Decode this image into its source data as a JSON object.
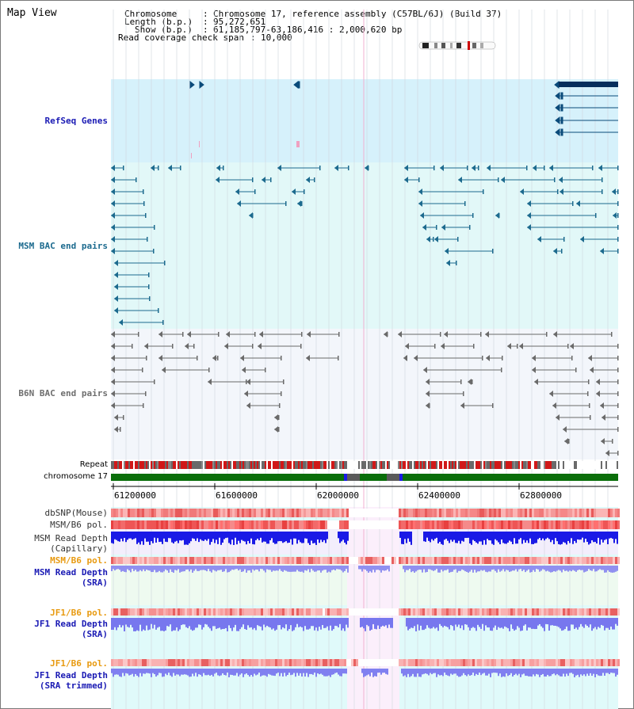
{
  "window": {
    "title": "Map View"
  },
  "header": {
    "chromosome_label": "Chromosome",
    "chromosome_value": "Chromosome 17, reference assembly (C57BL/6J) (Build 37)",
    "length_label": "Length (b.p.)",
    "length_value": "95,272,651",
    "show_label": "Show (b.p.)",
    "show_value": "61,185,797-63,186,416 : 2,000,620 bp",
    "coverage_label": "Read coverage check span",
    "coverage_value": "10,000"
  },
  "tracks": {
    "refseq": "RefSeq Genes",
    "msm_bac": "MSM BAC end pairs",
    "b6n_bac": "B6N BAC end pairs",
    "repeat": "Repeat",
    "chromosome": "chromosome 17",
    "dbsnp": "dbSNP(Mouse)",
    "msm_b6_pol": "MSM/B6 pol.",
    "msm_read_depth_cap_1": "MSM Read Depth",
    "msm_read_depth_cap_2": "(Capillary)",
    "msm_b6_pol_2": "MSM/B6 pol.",
    "msm_read_depth_sra_1": "MSM Read Depth",
    "msm_read_depth_sra_2": "(SRA)",
    "jf1_b6_pol": "JF1/B6 pol.",
    "jf1_read_depth_sra_1": "JF1 Read Depth",
    "jf1_read_depth_sra_2": "(SRA)",
    "jf1_b6_pol_2": "JF1/B6 pol.",
    "jf1_read_depth_trim_1": "JF1 Read Depth",
    "jf1_read_depth_trim_2": "(SRA trimmed)"
  },
  "axis": {
    "ticks": [
      "61200000",
      "61600000",
      "62000000",
      "62400000",
      "62800000"
    ]
  },
  "colors": {
    "refseq_bg": "#d6f1fb",
    "msm_bg": "#e2f8f8",
    "b6n_bg": "#f3f6fb",
    "refseq_label": "#1a1ab4",
    "msm_label": "#1c6a8e",
    "b6n_label": "#6e6e6e",
    "orange_label": "#e89a10",
    "blue_label": "#1a1ab4",
    "chromosome_band": "#0a6e0a",
    "depth_blue": "#1a1ae6",
    "depth_light": "#8a8af0"
  }
}
